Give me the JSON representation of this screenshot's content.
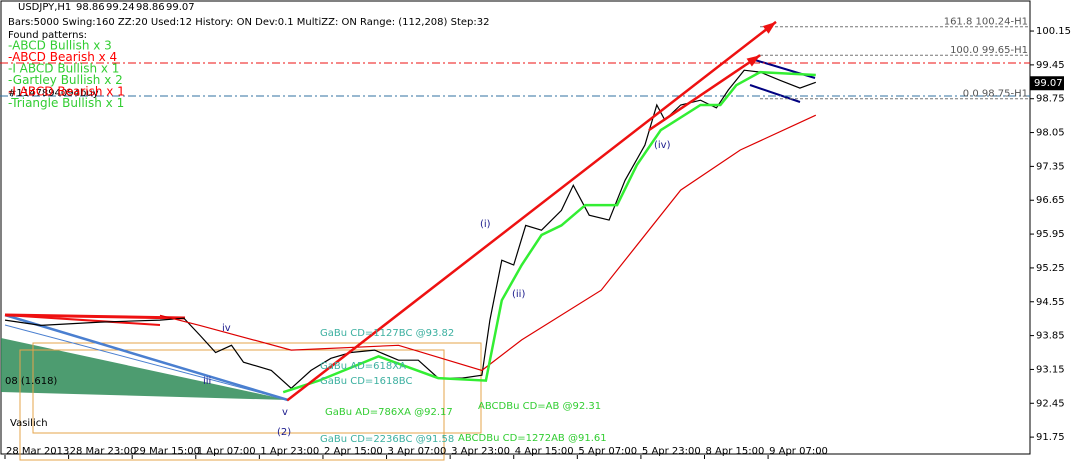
{
  "chart_data": {
    "type": "line",
    "title": "USDJPY,H1",
    "ohlc": [
      98.86,
      99.24,
      98.86,
      99.07
    ],
    "info": "Bars:5000  Swing:160  ZZ:20  Used:12  History: ON Dev:0.1  MultiZZ: ON  Range: (112,208)  Step:32",
    "patterns_heading": "Found patterns:",
    "patterns": [
      {
        "text": "-ABCD Bullish x 3",
        "color": "#32cd32"
      },
      {
        "text": "-ABCD Bearish x 4",
        "color": "#ff0000"
      },
      {
        "text": "-I ABCD Bullish x 1",
        "color": "#32cd32"
      },
      {
        "text": "-Gartley Bullish x 2",
        "color": "#32cd32"
      },
      {
        "text": "-I ABCD Bearish x 1",
        "color": "#ff0000"
      },
      {
        "text": "-Triangle Bullish x 1",
        "color": "#32cd32"
      }
    ],
    "order_label": "#1147894094buy",
    "xlim": [
      -1.26,
      257.9
    ],
    "xticks": [
      {
        "value": 0,
        "label": "28 Mar 2013"
      },
      {
        "value": 16,
        "label": "28 Mar 23:00"
      },
      {
        "value": 32,
        "label": "29 Mar 15:00"
      },
      {
        "value": 48,
        "label": "1 Apr 07:00"
      },
      {
        "value": 64,
        "label": "1 Apr 23:00"
      },
      {
        "value": 80,
        "label": "2 Apr 15:00"
      },
      {
        "value": 96,
        "label": "3 Apr 07:00"
      },
      {
        "value": 112,
        "label": "3 Apr 23:00"
      },
      {
        "value": 128,
        "label": "4 Apr 15:00"
      },
      {
        "value": 144,
        "label": "5 Apr 07:00"
      },
      {
        "value": 160,
        "label": "5 Apr 23:00"
      },
      {
        "value": 176,
        "label": "8 Apr 15:00"
      },
      {
        "value": 192,
        "label": "9 Apr 07:00"
      }
    ],
    "ylim": [
      91.38,
      100.73
    ],
    "yticks": [
      91.75,
      92.45,
      93.15,
      93.85,
      94.55,
      95.25,
      95.95,
      96.65,
      97.35,
      98.05,
      98.75,
      99.45,
      100.15
    ],
    "series": [
      {
        "name": "Price",
        "color": "#000000",
        "x": [
          0,
          9,
          24,
          39,
          45,
          49,
          53,
          57,
          60,
          67,
          72,
          77,
          82,
          87,
          93,
          99,
          104,
          109,
          115,
          120,
          122,
          125,
          128,
          131,
          135,
          140,
          143,
          147,
          152,
          156,
          161,
          164,
          166,
          170,
          175,
          179,
          182,
          186,
          190,
          195,
          200,
          204
        ],
        "values": [
          94.17,
          94.06,
          94.13,
          94.17,
          94.21,
          93.86,
          93.5,
          93.65,
          93.3,
          93.13,
          92.76,
          93.13,
          93.38,
          93.5,
          93.55,
          93.34,
          93.34,
          92.97,
          92.97,
          93.03,
          94.17,
          95.41,
          95.31,
          96.13,
          96.03,
          96.44,
          96.96,
          96.34,
          96.24,
          97.06,
          97.79,
          98.62,
          98.31,
          98.62,
          98.72,
          98.56,
          98.93,
          99.34,
          99.3,
          99.13,
          98.97,
          99.09
        ]
      },
      {
        "name": "Moving Average",
        "color": "#dd0000",
        "x": [
          39,
          49,
          72,
          99,
          120,
          130,
          150,
          170,
          185,
          204
        ],
        "values": [
          94.27,
          94.06,
          93.55,
          93.65,
          93.13,
          93.76,
          94.79,
          96.86,
          97.69,
          98.41
        ]
      },
      {
        "name": "Step Line",
        "color": "#33ee33",
        "x": [
          70,
          79,
          94,
          109,
          121,
          125,
          130,
          135,
          140,
          146,
          154,
          159,
          165,
          175,
          180,
          184,
          190,
          204
        ],
        "values": [
          92.68,
          92.92,
          93.42,
          92.97,
          92.92,
          94.58,
          95.31,
          95.93,
          96.13,
          96.55,
          96.55,
          97.38,
          98.1,
          98.62,
          98.62,
          99.03,
          99.3,
          99.24
        ]
      },
      {
        "name": "Trend Arrow",
        "color": "#ee1111",
        "x": [
          71,
          194
        ],
        "values": [
          92.51,
          100.34
        ]
      },
      {
        "name": "Channel Arrow",
        "color": "#ee1111",
        "x": [
          162,
          190
        ],
        "values": [
          98.1,
          99.65
        ]
      }
    ],
    "levels": [
      {
        "value": 100.24,
        "label": "161.8 100.24-H1"
      },
      {
        "value": 99.65,
        "label": "100.0 99.65-H1"
      },
      {
        "value": 98.75,
        "label": "0.0 98.75-H1"
      }
    ],
    "last_price": 99.07,
    "wave_labels": [
      "(i)",
      "(ii)",
      "(iv)",
      "(2)",
      "iii",
      "iv",
      "v"
    ],
    "notes": [
      "GaBu CD=1127BC  @93.82",
      "GaBu AD=618XA",
      "GaBu CD=1618BC",
      "GaBu AD=786XA  @92.17",
      "ABCDBu CD=AB  @92.31",
      "GaBu CD=2236BC  @91.58",
      "ABCDBu CD=1272AB  @91.61",
      "08 (1.618)",
      "Vasilich"
    ]
  }
}
